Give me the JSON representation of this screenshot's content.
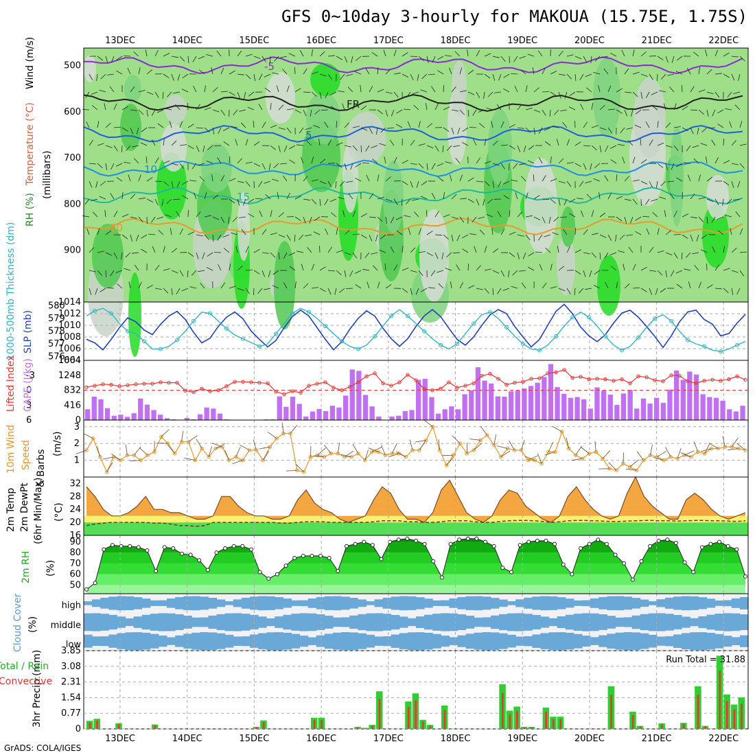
{
  "title": "GFS 0~10day 3-hourly for MAKOUA (15.75E, 1.75S)",
  "credit": "GrADS: COLA/IGES",
  "dates": [
    "13DEC",
    "14DEC",
    "15DEC",
    "16DEC",
    "17DEC",
    "18DEC",
    "19DEC",
    "20DEC",
    "21DEC",
    "22DEC"
  ],
  "colors": {
    "green": "#33cc33",
    "red": "#ee3333",
    "blue": "#1f3fbf",
    "cyan": "#33b5c5",
    "purple": "#c070f0",
    "orange": "#e8952a",
    "cloud": "#6aa8d8"
  },
  "chart_data": [
    {
      "type": "heatmap",
      "name": "upper-air",
      "ylabel_parts": [
        "RH (%)",
        "Temperature (°C)",
        "Wind (m/s)",
        "(millibars)"
      ],
      "yticks": [
        500,
        600,
        700,
        800,
        900
      ],
      "ylim": [
        1000,
        450
      ],
      "contour_labels": [
        "-5",
        "FR",
        "5",
        "10",
        "15",
        "20"
      ]
    },
    {
      "type": "line",
      "name": "thickness-slp",
      "ylabel_left": "1000-500mb Thickness (dm)",
      "ylabel_right": "SLP (mb)",
      "yticks_left": [
        576,
        577,
        578,
        579,
        580
      ],
      "yticks_right": [
        1004,
        1006,
        1008,
        1010,
        1012,
        1014
      ],
      "series": [
        {
          "name": "SLP (mb)",
          "values": [
            1007.6,
            1007.0,
            1005.8,
            1007.6,
            1009.6,
            1011.3,
            1010.6,
            1009.2,
            1008.4,
            1010.2,
            1011.6,
            1012.4,
            1011.0,
            1008.8,
            1007.0,
            1007.8,
            1009.8,
            1011.4,
            1012.3,
            1011.1,
            1009.0,
            1007.6,
            1006.3,
            1007.4,
            1009.6,
            1011.5,
            1012.6,
            1011.6,
            1009.6,
            1007.6,
            1005.8,
            1007.2,
            1009.4,
            1011.2,
            1012.5,
            1011.6,
            1009.5,
            1007.7,
            1006.4,
            1007.7,
            1009.8,
            1011.6,
            1012.7,
            1011.5,
            1009.5,
            1007.6,
            1006.6,
            1008.0,
            1010.0,
            1011.8,
            1012.7,
            1012.0,
            1009.8,
            1008.0,
            1006.3,
            1007.6,
            1010.0,
            1012.4,
            1013.6,
            1012.0,
            1009.7,
            1008.2,
            1007.2,
            1008.4,
            1010.4,
            1012.1,
            1012.6,
            1011.4,
            1009.8,
            1008.1,
            1006.2,
            1008.2,
            1010.6,
            1012.3,
            1012.6,
            1011.0,
            1010.2,
            1008.2,
            1008.6,
            1010.4,
            1011.9
          ]
        },
        {
          "name": "Thickness (dm)",
          "values": [
            579.2,
            579.6,
            579.8,
            579.4,
            578.6,
            578.0,
            577.8,
            577.2,
            576.6,
            576.6,
            576.8,
            577.3,
            578.0,
            578.8,
            579.5,
            579.4,
            578.8,
            578.2,
            577.7,
            577.4,
            577.1,
            576.8,
            577.0,
            577.8,
            578.6,
            579.4,
            579.8,
            579.5,
            579.0,
            578.4,
            577.8,
            577.2,
            576.8,
            576.6,
            576.9,
            577.6,
            578.4,
            579.2,
            579.7,
            579.2,
            578.6,
            578.0,
            577.4,
            576.9,
            576.6,
            577.0,
            577.8,
            578.6,
            579.3,
            579.5,
            579.0,
            578.3,
            577.6,
            577.0,
            576.6,
            576.5,
            576.9,
            577.6,
            578.4,
            579.1,
            579.5,
            579.1,
            578.4,
            577.6,
            576.9,
            576.5,
            576.8,
            577.5,
            578.3,
            579.0,
            579.3,
            578.8,
            578.0,
            577.3,
            577.0,
            576.8,
            576.5,
            576.4,
            576.6,
            576.9,
            577.2
          ]
        }
      ]
    },
    {
      "type": "bar",
      "name": "cape-li",
      "ylabel_left": "Lifted Index",
      "ylabel_right": "CAPE (J/kg)",
      "yticks_left": [
        -3,
        0,
        3,
        6
      ],
      "yticks_right": [
        0,
        416,
        832,
        1248,
        1664
      ],
      "series": [
        {
          "name": "CAPE (J/kg)",
          "values": [
            300,
            650,
            580,
            330,
            120,
            150,
            90,
            190,
            600,
            430,
            280,
            150,
            50,
            20,
            0,
            60,
            20,
            160,
            350,
            320,
            180,
            20,
            0,
            0,
            0,
            0,
            0,
            20,
            20,
            660,
            370,
            650,
            450,
            100,
            240,
            310,
            250,
            400,
            350,
            680,
            1410,
            1370,
            700,
            380,
            100,
            0,
            100,
            120,
            250,
            280,
            1120,
            1150,
            640,
            180,
            300,
            380,
            300,
            720,
            830,
            1470,
            1100,
            1020,
            660,
            650,
            800,
            820,
            880,
            950,
            1040,
            1200,
            1560,
            920,
            730,
            620,
            640,
            580,
            320,
            910,
            820,
            710,
            420,
            740,
            840,
            320,
            600,
            460,
            620,
            480,
            850,
            1380,
            1120,
            1350,
            1270,
            720,
            640,
            620,
            540,
            300,
            240,
            400
          ]
        },
        {
          "name": "Lifted Index",
          "values": [
            -0.6,
            -0.9,
            -1.2,
            -1.1,
            -0.8,
            -1.0,
            -1.2,
            -1.3,
            -1.3,
            -1.6,
            -1.5,
            -1.5,
            0.1,
            0.4,
            -0.3,
            0.2,
            0.0,
            -0.8,
            -1.7,
            -1.7,
            -1.6,
            -1.5,
            -1.4,
            0.3,
            0.8,
            0.2,
            0.5,
            -0.9,
            -1.3,
            -1.6,
            -0.5,
            0.0,
            -0.7,
            -1.6,
            -2.8,
            -3.4,
            -1.4,
            -0.9,
            -1.6,
            -3.1,
            -2.0,
            -0.2,
            0.0,
            -0.3,
            -1.6,
            -0.5,
            -0.9,
            -1.4,
            -2.9,
            -3.3,
            -2.3,
            -1.1,
            -1.5,
            -1.7,
            -2.3,
            -2.4,
            -3.4,
            -3.6,
            -4.1,
            -2.5,
            -2.7,
            -2.2,
            -2.3,
            -2.2,
            -1.9,
            -2.2,
            -1.4,
            -2.8,
            -2.6,
            -2.0,
            -1.8,
            -3.0,
            -2.9,
            -1.8,
            -1.4,
            -1.9,
            -2.1,
            -1.9,
            -2.2,
            -2.8,
            -2.1
          ]
        }
      ]
    },
    {
      "type": "line",
      "name": "wind10m",
      "ylabel": "10m Wind Speed & Barbs (m/s)",
      "yticks": [
        1,
        2,
        3
      ],
      "ylim": [
        0,
        3.4
      ],
      "series": [
        {
          "name": "Speed (m/s)",
          "values": [
            1.6,
            2.3,
            1.2,
            0.3,
            1.2,
            1.0,
            1.3,
            1.3,
            1.0,
            1.3,
            1.5,
            2.4,
            2.0,
            1.4,
            2.1,
            2.1,
            1.0,
            1.7,
            1.2,
            1.7,
            1.8,
            1.0,
            1.2,
            1.0,
            1.6,
            1.6,
            1.0,
            1.8,
            2.3,
            2.6,
            2.6,
            0.4,
            0.3,
            1.2,
            1.3,
            1.2,
            1.4,
            1.4,
            1.2,
            1.2,
            1.4,
            1.0,
            1.5,
            1.5,
            1.3,
            1.4,
            1.4,
            1.2,
            1.6,
            1.6,
            2.2,
            3.0,
            1.6,
            0.7,
            1.3,
            2.0,
            1.4,
            1.6,
            2.2,
            2.5,
            1.9,
            1.2,
            1.7,
            1.6,
            1.6,
            1.0,
            1.0,
            0.8,
            1.5,
            1.5,
            2.7,
            1.7,
            1.3,
            1.1,
            1.4,
            1.5,
            1.1,
            0.5,
            0.4,
            0.8,
            0.6,
            0.4,
            1.0,
            1.3,
            1.2,
            1.0,
            1.2,
            1.1,
            1.3,
            1.2,
            1.5,
            1.4,
            1.7,
            1.7,
            1.8,
            1.8,
            1.7,
            1.6
          ]
        }
      ]
    },
    {
      "type": "area",
      "name": "temp2m",
      "ylabel": "2m Temp 2m DewPt (6hr Min/Max) (°C)",
      "yticks": [
        16,
        20,
        24,
        28,
        32
      ],
      "ylim": [
        16,
        34
      ],
      "series": [
        {
          "name": "2m Temp",
          "values": [
            31,
            28,
            24,
            22,
            22,
            23,
            25,
            28,
            24,
            24,
            23,
            23,
            22,
            21,
            21,
            22,
            28,
            28,
            25,
            23,
            22,
            22,
            21,
            21,
            22,
            27,
            30,
            26,
            24,
            23,
            21,
            20,
            21,
            22,
            27,
            31,
            29,
            24,
            21,
            21,
            20,
            23,
            30,
            33,
            28,
            23,
            21,
            20,
            22,
            27,
            30,
            29,
            25,
            23,
            21,
            20,
            22,
            28,
            31,
            27,
            24,
            22,
            21,
            22,
            29,
            34,
            28,
            25,
            23,
            21,
            21,
            27,
            29,
            27,
            24,
            22,
            21,
            22,
            23
          ]
        },
        {
          "name": "2m DewPt",
          "values": [
            19,
            19.5,
            19.8,
            20,
            20,
            20,
            20,
            20,
            19.8,
            19.8,
            19.5,
            19,
            19,
            18.8,
            19,
            20,
            20,
            20,
            20,
            20,
            20,
            20,
            20,
            19.8,
            19.8,
            20,
            20.2,
            20.2,
            20.2,
            20,
            20,
            20,
            20,
            20,
            20.2,
            20.5,
            20.5,
            20.5,
            20.2,
            20.2,
            20,
            20,
            20.2,
            20.5,
            20.5,
            20.5,
            20.2,
            20,
            20,
            20.3,
            20.5,
            20.6,
            20.6,
            20.5,
            20.3,
            20,
            20.2,
            20.5,
            20.6,
            20.6,
            20.5,
            20.4,
            20.3,
            20.3,
            20.4,
            20.5,
            20.6,
            20.6,
            20.5,
            20.5,
            20.4,
            20.5,
            20.6,
            20.6,
            20.5,
            20.5,
            20.4,
            20.3,
            20.5
          ]
        }
      ]
    },
    {
      "type": "area",
      "name": "rh2m",
      "ylabel": "2m RH (%)",
      "yticks": [
        50,
        60,
        70,
        80,
        90
      ],
      "ylim": [
        42,
        96
      ],
      "series": [
        {
          "name": "2m RH",
          "values": [
            46,
            52,
            83,
            87,
            86,
            86,
            85,
            82,
            63,
            85,
            84,
            79,
            78,
            73,
            64,
            80,
            84,
            86,
            86,
            83,
            62,
            56,
            60,
            68,
            75,
            77,
            77,
            77,
            75,
            63,
            86,
            88,
            90,
            87,
            74,
            90,
            92,
            93,
            91,
            88,
            72,
            57,
            88,
            92,
            93,
            93,
            90,
            86,
            66,
            62,
            87,
            90,
            91,
            91,
            88,
            69,
            60,
            84,
            88,
            92,
            88,
            78,
            70,
            55,
            72,
            86,
            91,
            92,
            89,
            71,
            62,
            85,
            88,
            90,
            86,
            83,
            58
          ]
        }
      ]
    },
    {
      "type": "heatmap",
      "name": "cloud",
      "ylabel": "Cloud Cover (%)",
      "levels": [
        "high",
        "middle",
        "low"
      ]
    },
    {
      "type": "bar",
      "name": "precip",
      "ylabel_left": "Total / Rain Convective",
      "ylabel": "3hr Precip (mm)",
      "yticks": [
        0,
        0.77,
        1.54,
        2.31,
        3.08,
        3.85
      ],
      "ylim": [
        0,
        3.85
      ],
      "annotation": "Run Total = 31.88",
      "series": [
        {
          "name": "Total",
          "values": [
            0.4,
            0.5,
            0,
            0,
            0.28,
            0,
            0,
            0,
            0,
            0.22,
            0,
            0,
            0,
            0,
            0,
            0,
            0,
            0,
            0,
            0,
            0,
            0,
            0,
            0.1,
            0.42,
            0,
            0,
            0,
            0,
            0,
            0,
            0.55,
            0.55,
            0,
            0,
            0,
            0,
            0.1,
            0.05,
            0.2,
            1.85,
            0,
            0,
            0,
            1.35,
            1.75,
            0.45,
            0.2,
            0,
            1.15,
            0,
            0,
            0,
            0,
            0,
            0,
            0,
            2.2,
            0.9,
            1.1,
            0.1,
            0.1,
            0,
            1.05,
            0.6,
            0.6,
            0,
            0,
            0,
            0,
            0,
            0,
            2.1,
            0,
            0,
            0.85,
            0.15,
            0,
            0,
            0.28,
            0,
            0,
            0.3,
            0,
            2.1,
            0.15,
            0,
            3.6,
            1.7,
            1.2,
            1.55
          ]
        }
      ]
    }
  ]
}
